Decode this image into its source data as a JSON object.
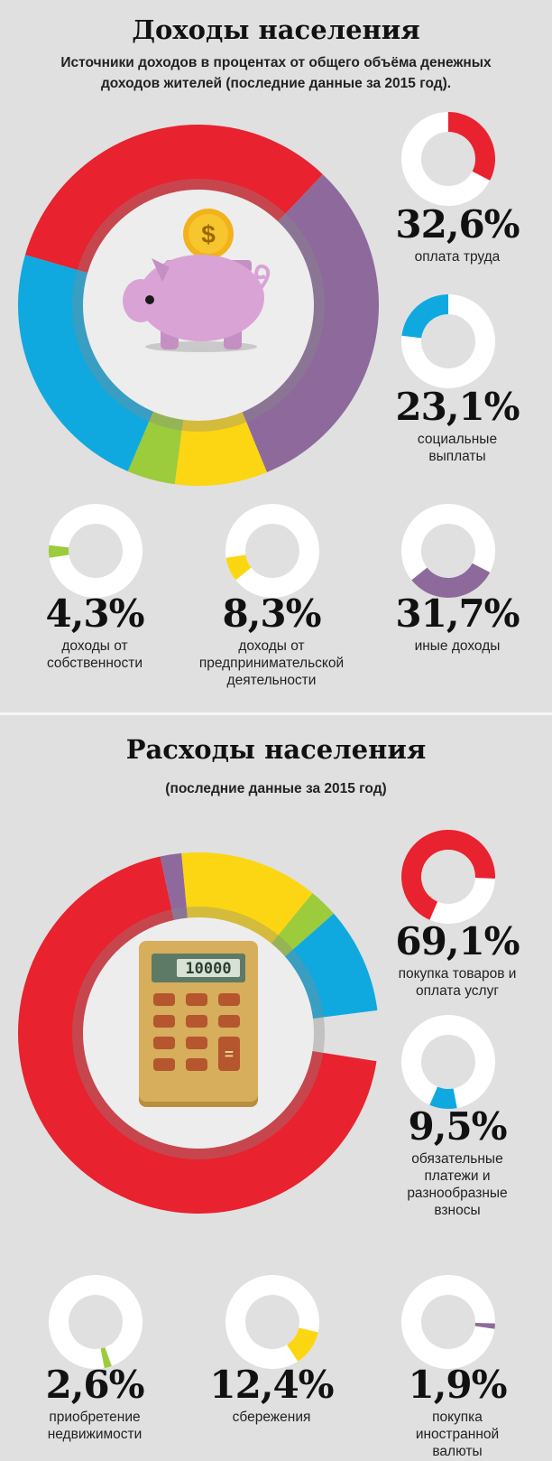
{
  "colors": {
    "red": "#e8222e",
    "blue": "#0fa9e0",
    "purple": "#8d6a9b",
    "green": "#9ccb3b",
    "yellow": "#fcd612",
    "white": "#ffffff",
    "background": "#e0e0e0"
  },
  "income": {
    "title": "Доходы населения",
    "subtitle_line1": "Источники доходов в процентах от общего объёма денежных",
    "subtitle_line2": "доходов жителей (последние данные за 2015 год).",
    "icon": "piggy-bank-icon"
  },
  "expenses": {
    "title": "Расходы населения",
    "subtitle": "(последние данные за 2015 год)",
    "icon": "calculator-icon",
    "calculator_display": "10000",
    "calculator_equals": "="
  },
  "chart_data": [
    {
      "type": "pie",
      "title": "Доходы населения",
      "slices": [
        {
          "label": "оплата труда",
          "value_text": "32,6%",
          "value": 32.6,
          "color": "#e8222e"
        },
        {
          "label": "иные доходы",
          "value_text": "31,7%",
          "value": 31.7,
          "color": "#8d6a9b"
        },
        {
          "label": "доходы от предпринимательской деятельности",
          "value_text": "8,3%",
          "value": 8.3,
          "color": "#fcd612"
        },
        {
          "label": "доходы от собственности",
          "value_text": "4,3%",
          "value": 4.3,
          "color": "#9ccb3b"
        },
        {
          "label": "социальные выплаты",
          "value_text": "23,1%",
          "value": 23.1,
          "color": "#0fa9e0"
        }
      ]
    },
    {
      "type": "pie",
      "title": "Расходы населения",
      "slices": [
        {
          "label": "покупка товаров и оплата услуг",
          "value_text": "69,1%",
          "value": 69.1,
          "color": "#e8222e"
        },
        {
          "label": "покупка иностранной валюты",
          "value_text": "1,9%",
          "value": 1.9,
          "color": "#8d6a9b"
        },
        {
          "label": "сбережения",
          "value_text": "12,4%",
          "value": 12.4,
          "color": "#fcd612"
        },
        {
          "label": "приобретение недвижимости",
          "value_text": "2,6%",
          "value": 2.6,
          "color": "#9ccb3b"
        },
        {
          "label": "обязательные платежи и разнообразные взносы",
          "value_text": "9,5%",
          "value": 9.5,
          "color": "#0fa9e0"
        }
      ]
    }
  ],
  "income_items": [
    {
      "value_text": "32,6%",
      "value": 32.6,
      "start": 0,
      "label_lines": [
        "оплата труда"
      ],
      "color": "#e8222e"
    },
    {
      "value_text": "23,1%",
      "value": 23.1,
      "start": 76.9,
      "label_lines": [
        "социальные",
        "выплаты"
      ],
      "color": "#0fa9e0"
    },
    {
      "value_text": "4,3%",
      "value": 4.3,
      "start": 72.6,
      "label_lines": [
        "доходы от",
        "собственности"
      ],
      "color": "#9ccb3b"
    },
    {
      "value_text": "8,3%",
      "value": 8.3,
      "start": 64.3,
      "label_lines": [
        "доходы от",
        "предпринимательской",
        "деятельности"
      ],
      "color": "#fcd612"
    },
    {
      "value_text": "31,7%",
      "value": 31.7,
      "start": 32.6,
      "label_lines": [
        "иные доходы"
      ],
      "color": "#8d6a9b"
    }
  ],
  "expense_items": [
    {
      "value_text": "69,1%",
      "value": 69.1,
      "start": 56.5,
      "label_lines": [
        "покупка товаров и",
        "оплата услуг"
      ],
      "color": "#e8222e"
    },
    {
      "value_text": "9,5%",
      "value": 9.5,
      "start": 47.0,
      "label_lines": [
        "обязательные",
        "платежи и",
        "разнообразные",
        "взносы"
      ],
      "color": "#0fa9e0"
    },
    {
      "value_text": "2,6%",
      "value": 2.6,
      "start": 44.4,
      "label_lines": [
        "приобретение",
        "недвижимости"
      ],
      "color": "#9ccb3b"
    },
    {
      "value_text": "12,4%",
      "value": 12.4,
      "start": 28.5,
      "label_lines": [
        "сбережения"
      ],
      "color": "#fcd612"
    },
    {
      "value_text": "1,9%",
      "value": 1.9,
      "start": 25.5,
      "label_lines": [
        "покупка",
        "иностранной",
        "валюты"
      ],
      "color": "#8d6a9b"
    }
  ]
}
